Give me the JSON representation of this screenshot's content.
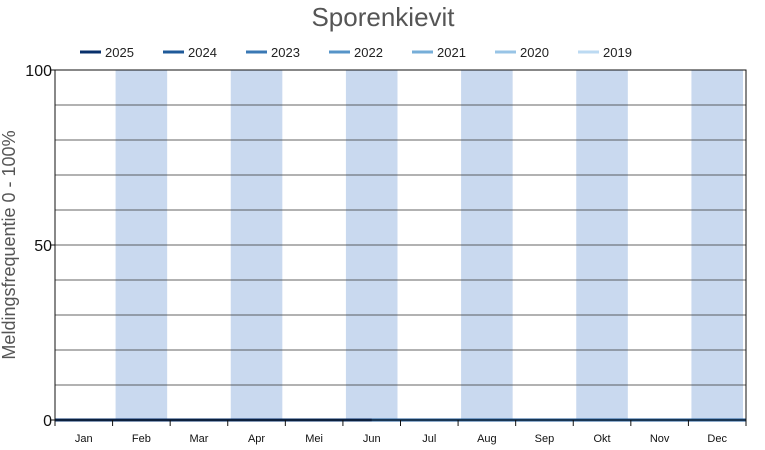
{
  "chart_data": {
    "type": "line",
    "title": "Sporenkievit",
    "ylabel": "Meldingsfrequentie 0 - 100%",
    "xlabel": "",
    "categories": [
      "Jan",
      "Feb",
      "Mar",
      "Apr",
      "Mei",
      "Jun",
      "Jul",
      "Aug",
      "Sep",
      "Okt",
      "Nov",
      "Dec"
    ],
    "ylim": [
      0,
      100
    ],
    "yticks": [
      0,
      50,
      100
    ],
    "grid": true,
    "legend_position": "top",
    "alternate_month_shading": "#c9d9ef",
    "series": [
      {
        "name": "2025",
        "color": "#08306b",
        "values": [
          0,
          0,
          0,
          0,
          0,
          0,
          null,
          null,
          null,
          null,
          null,
          null
        ]
      },
      {
        "name": "2024",
        "color": "#1f5a99",
        "values": [
          0,
          0,
          0,
          0,
          0,
          0,
          0,
          0,
          0,
          0,
          0,
          0
        ]
      },
      {
        "name": "2023",
        "color": "#3a78b4",
        "values": [
          0,
          0,
          0,
          0,
          0,
          0,
          0,
          0,
          0,
          0,
          0,
          0
        ]
      },
      {
        "name": "2022",
        "color": "#5694c8",
        "values": [
          0,
          0,
          0,
          0,
          0,
          0,
          0,
          0,
          0,
          0,
          0,
          0
        ]
      },
      {
        "name": "2021",
        "color": "#76aed8",
        "values": [
          0,
          0,
          0,
          0,
          0,
          0,
          0,
          0,
          0,
          0,
          0,
          0
        ]
      },
      {
        "name": "2020",
        "color": "#98c4e6",
        "values": [
          0,
          0,
          0,
          0,
          0,
          0,
          0,
          0,
          0,
          0,
          0,
          0
        ]
      },
      {
        "name": "2019",
        "color": "#bcdaf2",
        "values": [
          0,
          0,
          0,
          0,
          0,
          0,
          0,
          0,
          0,
          0,
          0,
          0
        ]
      }
    ]
  }
}
